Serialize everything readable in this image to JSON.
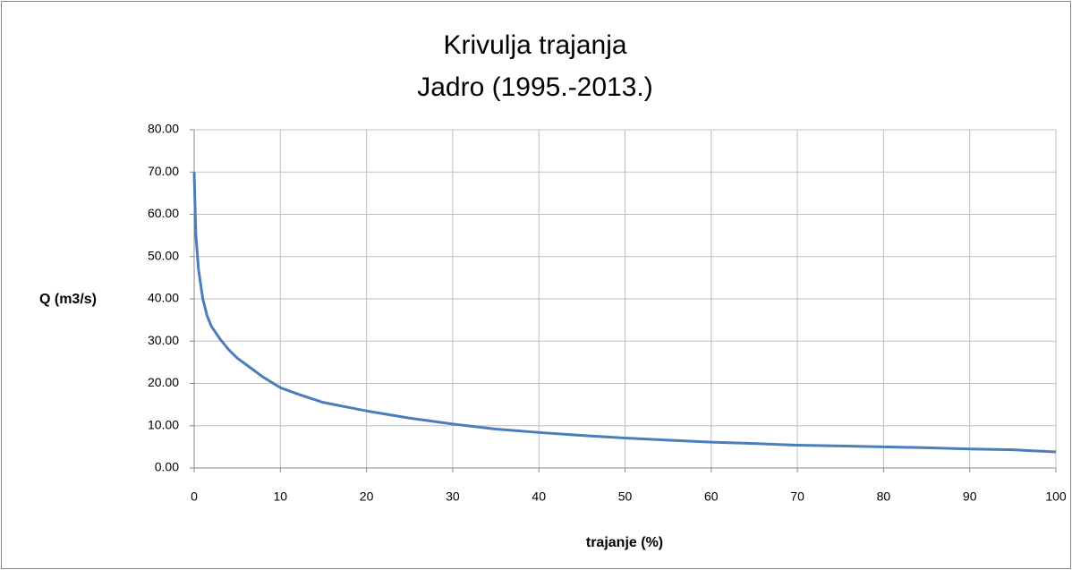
{
  "chart_data": {
    "type": "line",
    "title": "Krivulja trajanja",
    "subtitle": "Jadro (1995.-2013.)",
    "x_label": "trajanje (%)",
    "y_label": "Q (m3/s)",
    "series": [
      {
        "color": "#4a7ebb",
        "x": [
          0,
          0.1,
          0.2,
          0.5,
          1,
          1.5,
          2,
          3,
          4,
          5,
          6,
          8,
          10,
          12,
          15,
          20,
          25,
          30,
          35,
          40,
          45,
          50,
          55,
          60,
          65,
          70,
          75,
          80,
          85,
          90,
          95,
          100
        ],
        "values": [
          70,
          62,
          55,
          47,
          40,
          36,
          33.5,
          30.5,
          28,
          26,
          24.5,
          21.5,
          19,
          17.5,
          15.5,
          13.5,
          11.8,
          10.4,
          9.2,
          8.4,
          7.7,
          7.1,
          6.6,
          6.1,
          5.8,
          5.4,
          5.2,
          5.0,
          4.8,
          4.5,
          4.3,
          3.8
        ]
      }
    ],
    "xlim": [
      0,
      100
    ],
    "xticks": [
      0,
      10,
      20,
      30,
      40,
      50,
      60,
      70,
      80,
      90,
      100
    ],
    "ylim": [
      0,
      80
    ],
    "yticks": [
      {
        "value": 0,
        "label": "0.00"
      },
      {
        "value": 10,
        "label": "10.00"
      },
      {
        "value": 20,
        "label": "20.00"
      },
      {
        "value": 30,
        "label": "30.00"
      },
      {
        "value": 40,
        "label": "40.00"
      },
      {
        "value": 50,
        "label": "50.00"
      },
      {
        "value": 60,
        "label": "60.00"
      },
      {
        "value": 70,
        "label": "70.00"
      },
      {
        "value": 80,
        "label": "80.00"
      }
    ],
    "grid": true
  }
}
